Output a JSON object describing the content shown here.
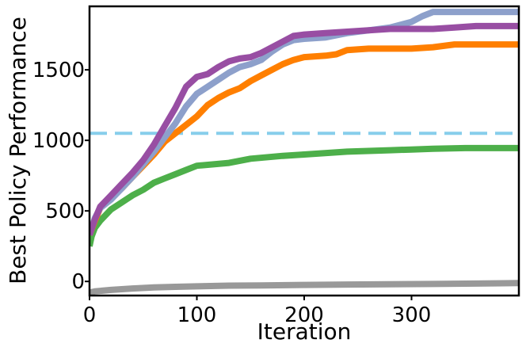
{
  "chart_data": {
    "type": "line",
    "title": "",
    "xlabel": "Iteration",
    "ylabel": "Best Policy Performance",
    "xlim": [
      0,
      400
    ],
    "ylim": [
      -100,
      1950
    ],
    "xticks": [
      0,
      100,
      200,
      300
    ],
    "yticks": [
      0,
      500,
      1000,
      1500
    ],
    "grid": false,
    "legend": "none",
    "series": [
      {
        "name": "gray",
        "color": "#999999",
        "points": [
          [
            0,
            -80
          ],
          [
            5,
            -70
          ],
          [
            20,
            -60
          ],
          [
            40,
            -50
          ],
          [
            60,
            -42
          ],
          [
            80,
            -38
          ],
          [
            100,
            -35
          ],
          [
            130,
            -30
          ],
          [
            160,
            -28
          ],
          [
            200,
            -25
          ],
          [
            240,
            -22
          ],
          [
            280,
            -20
          ],
          [
            320,
            -18
          ],
          [
            360,
            -15
          ],
          [
            400,
            -12
          ]
        ]
      },
      {
        "name": "green",
        "color": "#4daf4a",
        "points": [
          [
            0,
            250
          ],
          [
            2,
            320
          ],
          [
            5,
            380
          ],
          [
            10,
            430
          ],
          [
            15,
            470
          ],
          [
            20,
            510
          ],
          [
            30,
            560
          ],
          [
            40,
            610
          ],
          [
            50,
            650
          ],
          [
            60,
            700
          ],
          [
            70,
            730
          ],
          [
            80,
            760
          ],
          [
            90,
            790
          ],
          [
            100,
            820
          ],
          [
            130,
            840
          ],
          [
            150,
            870
          ],
          [
            180,
            890
          ],
          [
            200,
            900
          ],
          [
            240,
            920
          ],
          [
            280,
            930
          ],
          [
            300,
            935
          ],
          [
            320,
            940
          ],
          [
            350,
            945
          ],
          [
            400,
            945
          ]
        ]
      },
      {
        "name": "orange",
        "color": "#ff7f00",
        "points": [
          [
            0,
            330
          ],
          [
            5,
            430
          ],
          [
            10,
            520
          ],
          [
            20,
            600
          ],
          [
            30,
            660
          ],
          [
            40,
            740
          ],
          [
            50,
            820
          ],
          [
            60,
            900
          ],
          [
            70,
            990
          ],
          [
            80,
            1050
          ],
          [
            90,
            1110
          ],
          [
            100,
            1170
          ],
          [
            110,
            1250
          ],
          [
            120,
            1300
          ],
          [
            130,
            1340
          ],
          [
            140,
            1370
          ],
          [
            150,
            1420
          ],
          [
            160,
            1460
          ],
          [
            170,
            1500
          ],
          [
            180,
            1540
          ],
          [
            190,
            1570
          ],
          [
            200,
            1590
          ],
          [
            220,
            1600
          ],
          [
            230,
            1610
          ],
          [
            240,
            1640
          ],
          [
            260,
            1650
          ],
          [
            300,
            1650
          ],
          [
            320,
            1660
          ],
          [
            340,
            1680
          ],
          [
            400,
            1680
          ]
        ]
      },
      {
        "name": "light-blue",
        "color": "#8da0cb",
        "points": [
          [
            0,
            330
          ],
          [
            5,
            450
          ],
          [
            10,
            520
          ],
          [
            20,
            580
          ],
          [
            30,
            660
          ],
          [
            40,
            740
          ],
          [
            50,
            830
          ],
          [
            60,
            920
          ],
          [
            70,
            1020
          ],
          [
            80,
            1120
          ],
          [
            90,
            1240
          ],
          [
            100,
            1330
          ],
          [
            110,
            1380
          ],
          [
            120,
            1430
          ],
          [
            130,
            1480
          ],
          [
            140,
            1520
          ],
          [
            150,
            1540
          ],
          [
            160,
            1570
          ],
          [
            170,
            1630
          ],
          [
            180,
            1680
          ],
          [
            190,
            1710
          ],
          [
            200,
            1720
          ],
          [
            220,
            1730
          ],
          [
            240,
            1760
          ],
          [
            260,
            1780
          ],
          [
            280,
            1800
          ],
          [
            300,
            1840
          ],
          [
            310,
            1880
          ],
          [
            320,
            1910
          ],
          [
            340,
            1910
          ],
          [
            360,
            1910
          ],
          [
            400,
            1910
          ]
        ]
      },
      {
        "name": "purple",
        "color": "#984ea3",
        "points": [
          [
            0,
            330
          ],
          [
            5,
            440
          ],
          [
            10,
            530
          ],
          [
            20,
            610
          ],
          [
            30,
            690
          ],
          [
            40,
            770
          ],
          [
            50,
            860
          ],
          [
            60,
            970
          ],
          [
            70,
            1100
          ],
          [
            80,
            1230
          ],
          [
            90,
            1380
          ],
          [
            100,
            1450
          ],
          [
            110,
            1470
          ],
          [
            120,
            1520
          ],
          [
            130,
            1560
          ],
          [
            140,
            1580
          ],
          [
            150,
            1590
          ],
          [
            160,
            1620
          ],
          [
            170,
            1660
          ],
          [
            180,
            1700
          ],
          [
            190,
            1740
          ],
          [
            200,
            1750
          ],
          [
            220,
            1760
          ],
          [
            240,
            1770
          ],
          [
            260,
            1780
          ],
          [
            280,
            1790
          ],
          [
            300,
            1790
          ],
          [
            320,
            1790
          ],
          [
            340,
            1800
          ],
          [
            360,
            1810
          ],
          [
            400,
            1810
          ]
        ]
      }
    ],
    "reference_lines": [
      {
        "name": "threshold",
        "y": 1050,
        "color": "#87ceeb",
        "style": "dashed"
      }
    ]
  }
}
